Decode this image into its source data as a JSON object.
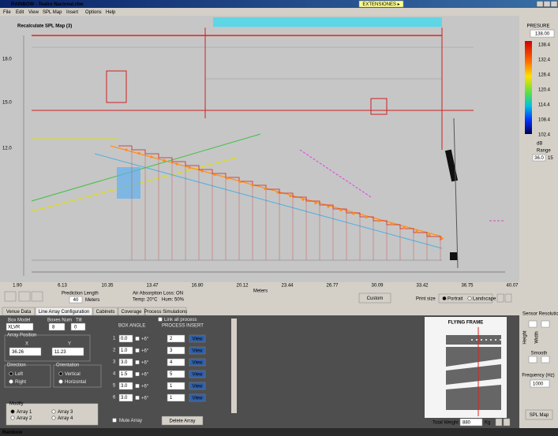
{
  "window": {
    "title": "RAINBOW - Teatro Nacional.rbw",
    "extensions_button": "EXTENSIONES ▸"
  },
  "menu": [
    "File",
    "Edit",
    "View",
    "SPL Map",
    "Insert",
    "Options",
    "Help"
  ],
  "map": {
    "title": "Recalculate SPL Map (3)",
    "y_labels": [
      "18.0",
      "15.0",
      "12.0"
    ],
    "x_labels": [
      "1.90",
      "6.13",
      "10.35",
      "13.47",
      "16.80",
      "20.12",
      "23.44",
      "26.77",
      "30.09",
      "33.42",
      "36.75",
      "40.07"
    ],
    "x_axis_label": "Meters"
  },
  "color_scale": {
    "title": "PRESURE",
    "max_box": "138.00",
    "labels": [
      "138.4",
      "132.4",
      "126.4",
      "120.4",
      "114.4",
      "108.4",
      "102.4"
    ],
    "unit": "dB",
    "range_label": "Range",
    "range_value": "36.0",
    "range_step": "15"
  },
  "toolbar": {
    "prediction_length_label": "Prediction Length",
    "prediction_length": "40",
    "prediction_unit": "Meters",
    "air_absorption": "Air Absorption Loss: ON",
    "temp": "Temp: 20°C",
    "hum": "Hum: 50%",
    "custom_button": "Custom",
    "print_size_label": "Print size",
    "print_options": [
      "Portrait",
      "Landscape"
    ]
  },
  "tabs": [
    "Venue Data",
    "Line Array Configuration",
    "Cabinets",
    "Coverage",
    "Process Simulations"
  ],
  "array_config": {
    "box_model_label": "Box Model",
    "box_model": "XLVR",
    "boxes_num_label": "Boxes Num",
    "boxes_num": "8",
    "tilt_label": "Tilt",
    "tilt": "0",
    "position_label": "Array Position",
    "x_label": "X",
    "y_label": "Y",
    "x_value": "36.26",
    "y_value": "11.23",
    "direction_label": "Direction",
    "direction_options": [
      "Left",
      "Right"
    ],
    "orientation_label": "Orientation",
    "orientation_options": [
      "Vertical",
      "Horizontal"
    ],
    "modify_label": "Modify",
    "modify_options": [
      "Array 1",
      "Array 2",
      "Array 3",
      "Array 4"
    ],
    "box_angle_label": "BOX ANGLE",
    "link_all_label": "Link all process",
    "process_insert_label": "PROCESS INSERT",
    "rows": [
      {
        "index": "1",
        "angle": "0.0",
        "limit": "+6°",
        "process": "2",
        "view": "View"
      },
      {
        "index": "2",
        "angle": "1.0",
        "limit": "+6°",
        "process": "3",
        "view": "View"
      },
      {
        "index": "3",
        "angle": "3.0",
        "limit": "+6°",
        "process": "4",
        "view": "View"
      },
      {
        "index": "4",
        "angle": "1.5",
        "limit": "+6°",
        "process": "5",
        "view": "View"
      },
      {
        "index": "5",
        "angle": "3.0",
        "limit": "+6°",
        "process": "1",
        "view": "View"
      },
      {
        "index": "6",
        "angle": "3.0",
        "limit": "+6°",
        "process": "1",
        "view": "View"
      }
    ],
    "mute_label": "Mute Array",
    "delete_button": "Delete Array"
  },
  "flying_frame": {
    "title": "FLYING FRAME",
    "weight_label": "Total Weight",
    "weight": "880",
    "weight_unit": "Kg"
  },
  "sensor": {
    "title": "Sensor Resolution",
    "height_label": "Height",
    "width_label": "Width",
    "smooth_label": "Smooth",
    "frequency_label": "Frequency (Hz)",
    "frequency": "1000",
    "spl_button": "SPL Map"
  },
  "footer": {
    "logo": "Rainbow"
  }
}
